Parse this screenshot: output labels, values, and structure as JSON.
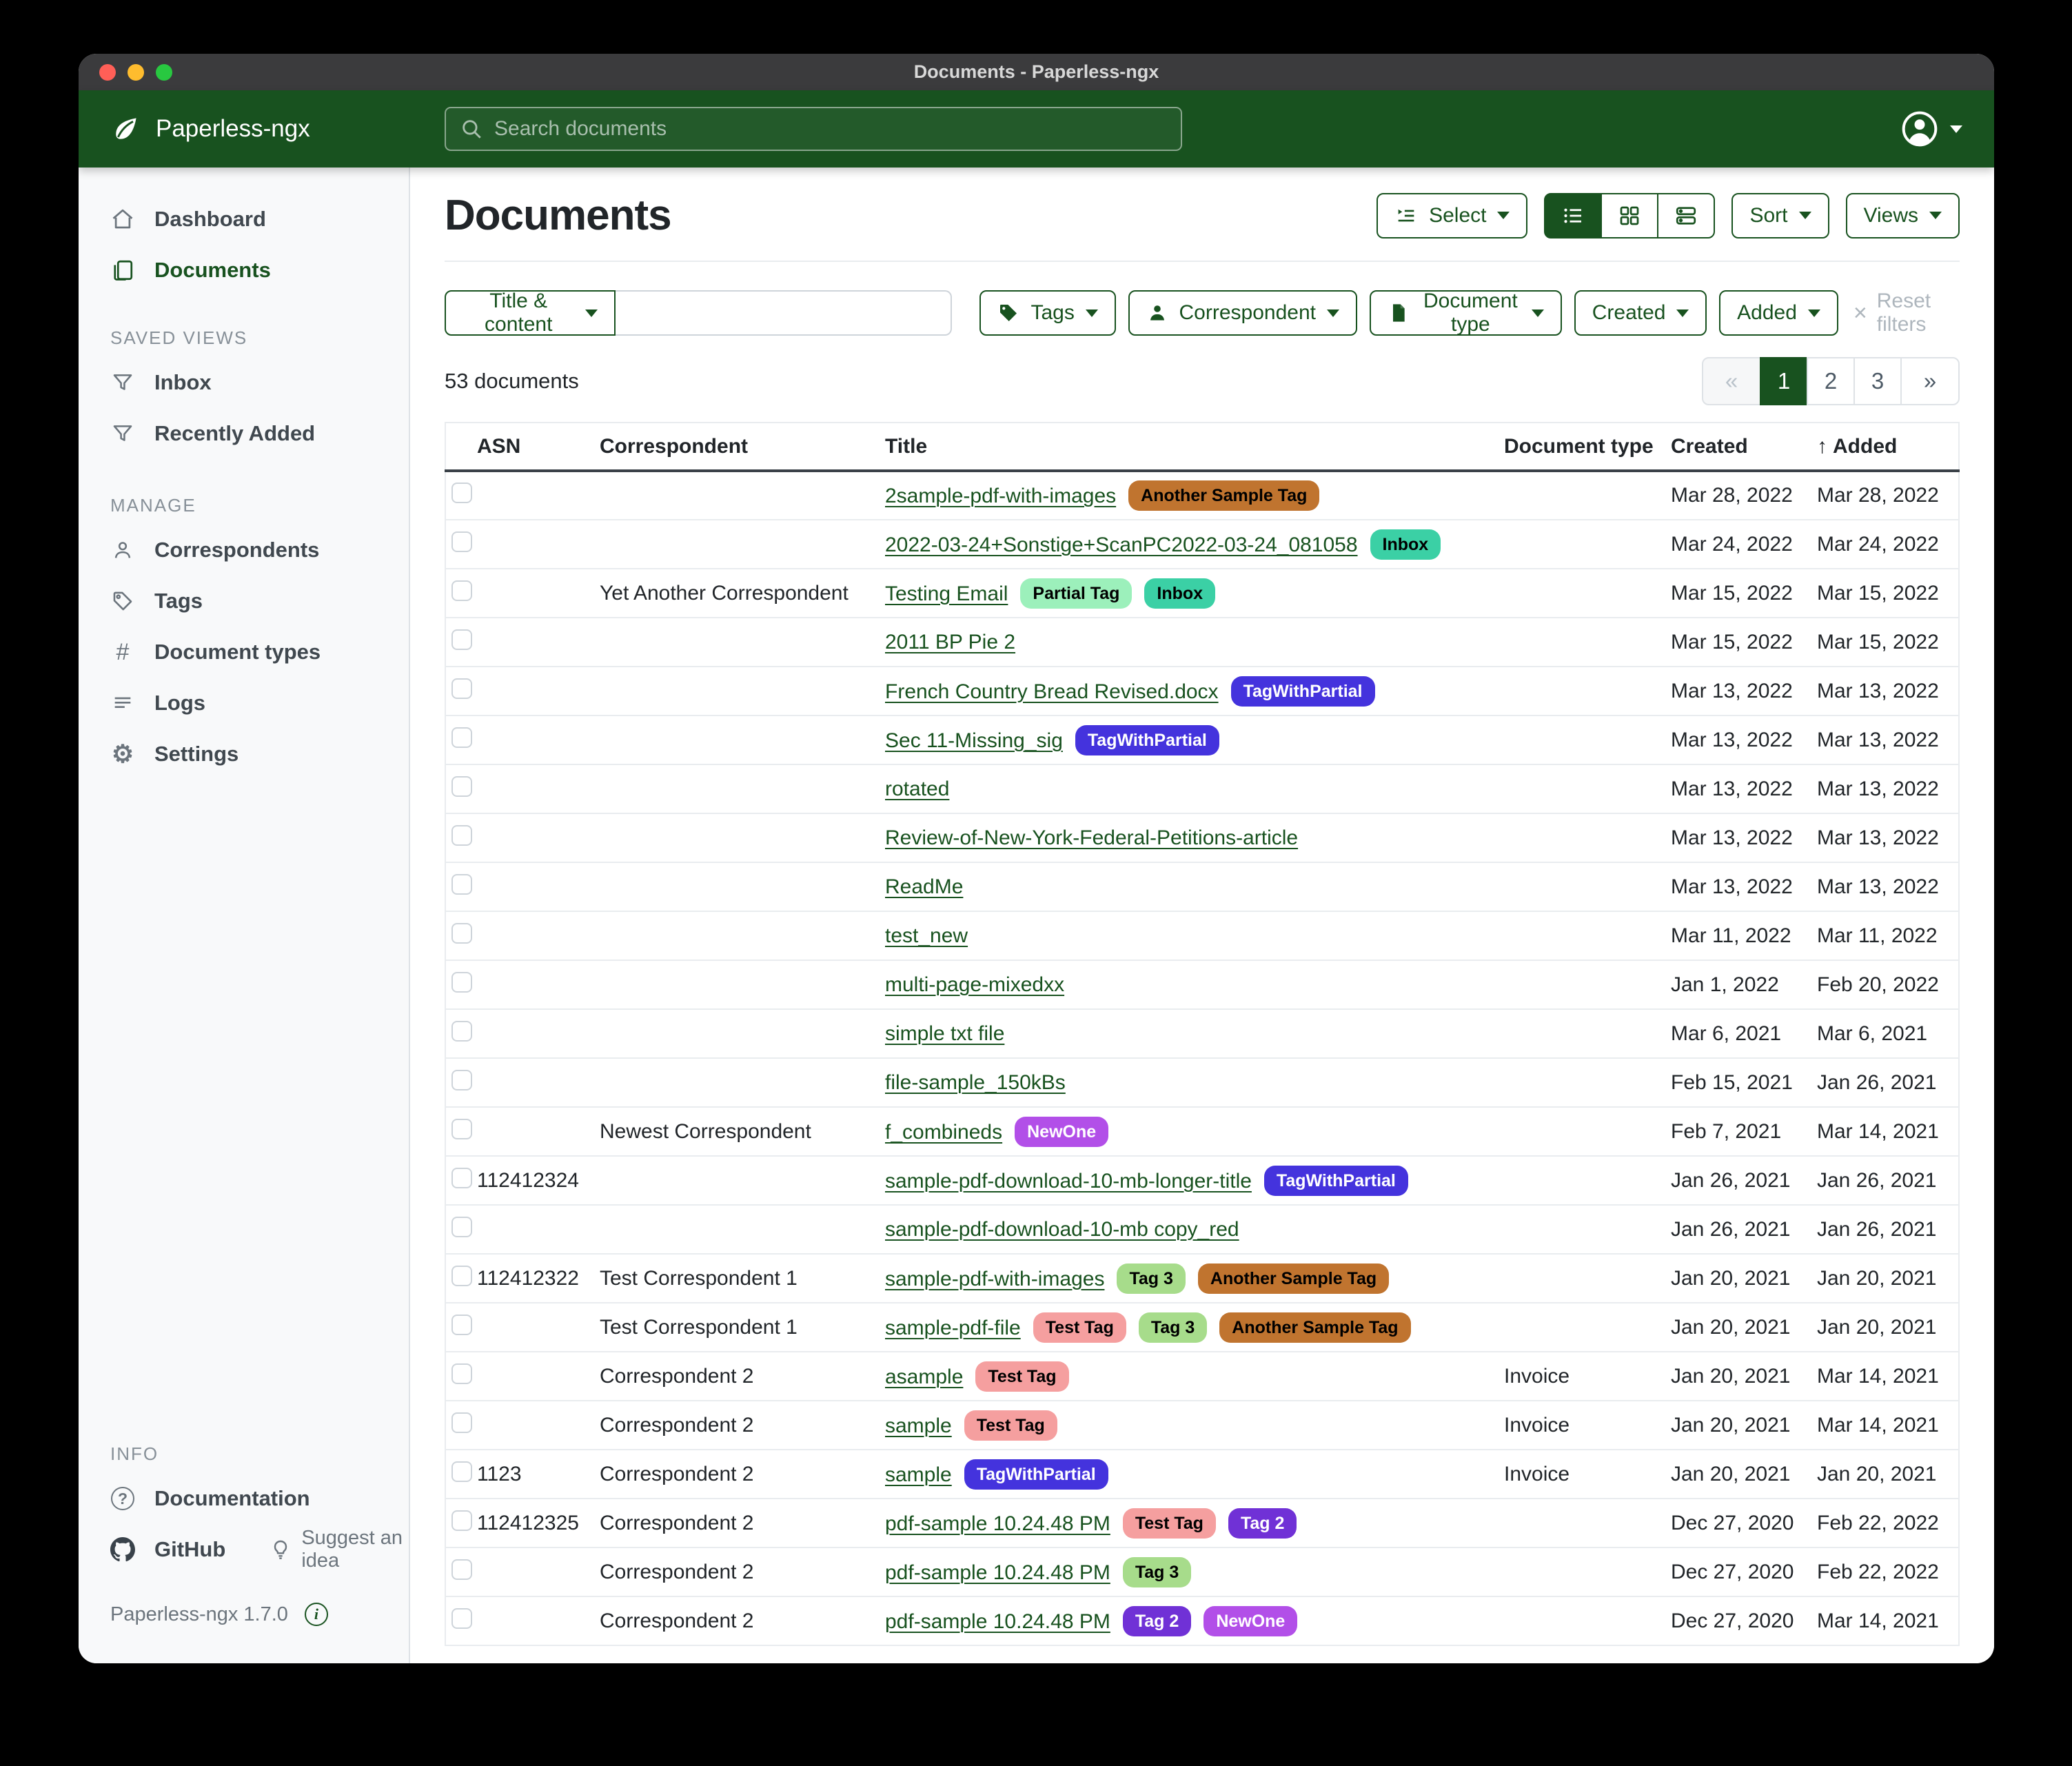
{
  "window": {
    "title": "Documents - Paperless-ngx"
  },
  "header": {
    "app_name": "Paperless-ngx",
    "search_placeholder": "Search documents"
  },
  "sidebar": {
    "nav": [
      {
        "label": "Dashboard"
      },
      {
        "label": "Documents"
      }
    ],
    "saved_views_heading": "SAVED VIEWS",
    "saved_views": [
      "Inbox",
      "Recently Added"
    ],
    "manage_heading": "MANAGE",
    "manage": [
      "Correspondents",
      "Tags",
      "Document types",
      "Logs",
      "Settings"
    ],
    "info_heading": "INFO",
    "info": {
      "documentation": "Documentation",
      "github": "GitHub",
      "suggest": "Suggest an idea",
      "version": "Paperless-ngx 1.7.0"
    }
  },
  "main": {
    "title": "Documents",
    "count_text": "53 documents"
  },
  "toolbar": {
    "select": "Select",
    "sort": "Sort",
    "views": "Views"
  },
  "filters": {
    "field": "Title & content",
    "query": "",
    "tags": "Tags",
    "correspondent": "Correspondent",
    "document_type": "Document type",
    "created": "Created",
    "added": "Added",
    "reset": "Reset filters"
  },
  "pagination": {
    "prev": "«",
    "pages": [
      "1",
      "2",
      "3"
    ],
    "active_page": "1",
    "next": "»"
  },
  "table": {
    "columns": [
      "ASN",
      "Correspondent",
      "Title",
      "Document type",
      "Created",
      "Added"
    ],
    "sort_column": "Added",
    "sort_direction": "ascending",
    "rows": [
      {
        "asn": "",
        "correspondent": "",
        "title": "2sample-pdf-with-images",
        "tags": [
          "Another Sample Tag"
        ],
        "document_type": "",
        "created": "Mar 28, 2022",
        "added": "Mar 28, 2022"
      },
      {
        "asn": "",
        "correspondent": "",
        "title": "2022-03-24+Sonstige+ScanPC2022-03-24_081058",
        "tags": [
          "Inbox"
        ],
        "document_type": "",
        "created": "Mar 24, 2022",
        "added": "Mar 24, 2022"
      },
      {
        "asn": "",
        "correspondent": "Yet Another Correspondent",
        "title": "Testing Email",
        "tags": [
          "Partial Tag",
          "Inbox"
        ],
        "document_type": "",
        "created": "Mar 15, 2022",
        "added": "Mar 15, 2022"
      },
      {
        "asn": "",
        "correspondent": "",
        "title": "2011 BP Pie 2",
        "tags": [],
        "document_type": "",
        "created": "Mar 15, 2022",
        "added": "Mar 15, 2022"
      },
      {
        "asn": "",
        "correspondent": "",
        "title": "French Country Bread Revised.docx",
        "tags": [
          "TagWithPartial"
        ],
        "document_type": "",
        "created": "Mar 13, 2022",
        "added": "Mar 13, 2022"
      },
      {
        "asn": "",
        "correspondent": "",
        "title": "Sec 11-Missing_sig",
        "tags": [
          "TagWithPartial"
        ],
        "document_type": "",
        "created": "Mar 13, 2022",
        "added": "Mar 13, 2022"
      },
      {
        "asn": "",
        "correspondent": "",
        "title": "rotated",
        "tags": [],
        "document_type": "",
        "created": "Mar 13, 2022",
        "added": "Mar 13, 2022"
      },
      {
        "asn": "",
        "correspondent": "",
        "title": "Review-of-New-York-Federal-Petitions-article",
        "tags": [],
        "document_type": "",
        "created": "Mar 13, 2022",
        "added": "Mar 13, 2022"
      },
      {
        "asn": "",
        "correspondent": "",
        "title": "ReadMe",
        "tags": [],
        "document_type": "",
        "created": "Mar 13, 2022",
        "added": "Mar 13, 2022"
      },
      {
        "asn": "",
        "correspondent": "",
        "title": "test_new",
        "tags": [],
        "document_type": "",
        "created": "Mar 11, 2022",
        "added": "Mar 11, 2022"
      },
      {
        "asn": "",
        "correspondent": "",
        "title": "multi-page-mixedxx",
        "tags": [],
        "document_type": "",
        "created": "Jan 1, 2022",
        "added": "Feb 20, 2022"
      },
      {
        "asn": "",
        "correspondent": "",
        "title": "simple txt file",
        "tags": [],
        "document_type": "",
        "created": "Mar 6, 2021",
        "added": "Mar 6, 2021"
      },
      {
        "asn": "",
        "correspondent": "",
        "title": "file-sample_150kBs",
        "tags": [],
        "document_type": "",
        "created": "Feb 15, 2021",
        "added": "Jan 26, 2021"
      },
      {
        "asn": "",
        "correspondent": "Newest Correspondent",
        "title": "f_combineds",
        "tags": [
          "NewOne"
        ],
        "document_type": "",
        "created": "Feb 7, 2021",
        "added": "Mar 14, 2021"
      },
      {
        "asn": "112412324",
        "correspondent": "",
        "title": "sample-pdf-download-10-mb-longer-title",
        "tags": [
          "TagWithPartial"
        ],
        "document_type": "",
        "created": "Jan 26, 2021",
        "added": "Jan 26, 2021"
      },
      {
        "asn": "",
        "correspondent": "",
        "title": "sample-pdf-download-10-mb copy_red",
        "tags": [],
        "document_type": "",
        "created": "Jan 26, 2021",
        "added": "Jan 26, 2021"
      },
      {
        "asn": "112412322",
        "correspondent": "Test Correspondent 1",
        "title": "sample-pdf-with-images",
        "tags": [
          "Tag 3",
          "Another Sample Tag"
        ],
        "document_type": "",
        "created": "Jan 20, 2021",
        "added": "Jan 20, 2021"
      },
      {
        "asn": "",
        "correspondent": "Test Correspondent 1",
        "title": "sample-pdf-file",
        "tags": [
          "Test Tag",
          "Tag 3",
          "Another Sample Tag"
        ],
        "document_type": "",
        "created": "Jan 20, 2021",
        "added": "Jan 20, 2021"
      },
      {
        "asn": "",
        "correspondent": "Correspondent 2",
        "title": "asample",
        "tags": [
          "Test Tag"
        ],
        "document_type": "Invoice",
        "created": "Jan 20, 2021",
        "added": "Mar 14, 2021"
      },
      {
        "asn": "",
        "correspondent": "Correspondent 2",
        "title": "sample",
        "tags": [
          "Test Tag"
        ],
        "document_type": "Invoice",
        "created": "Jan 20, 2021",
        "added": "Mar 14, 2021"
      },
      {
        "asn": "1123",
        "correspondent": "Correspondent 2",
        "title": "sample",
        "tags": [
          "TagWithPartial"
        ],
        "document_type": "Invoice",
        "created": "Jan 20, 2021",
        "added": "Jan 20, 2021"
      },
      {
        "asn": "112412325",
        "correspondent": "Correspondent 2",
        "title": "pdf-sample 10.24.48 PM",
        "tags": [
          "Test Tag",
          "Tag 2"
        ],
        "document_type": "",
        "created": "Dec 27, 2020",
        "added": "Feb 22, 2022"
      },
      {
        "asn": "",
        "correspondent": "Correspondent 2",
        "title": "pdf-sample 10.24.48 PM",
        "tags": [
          "Tag 3"
        ],
        "document_type": "",
        "created": "Dec 27, 2020",
        "added": "Feb 22, 2022"
      },
      {
        "asn": "",
        "correspondent": "Correspondent 2",
        "title": "pdf-sample 10.24.48 PM",
        "tags": [
          "Tag 2",
          "NewOne"
        ],
        "document_type": "",
        "created": "Dec 27, 2020",
        "added": "Mar 14, 2021"
      }
    ]
  },
  "tag_colors": {
    "Another Sample Tag": {
      "bg": "#c0742f",
      "fg": "#000000"
    },
    "Inbox": {
      "bg": "#3bd0a5",
      "fg": "#000000"
    },
    "Partial Tag": {
      "bg": "#9cf0bb",
      "fg": "#000000"
    },
    "TagWithPartial": {
      "bg": "#4433dd",
      "fg": "#ffffff"
    },
    "NewOne": {
      "bg": "#b24fe8",
      "fg": "#ffffff"
    },
    "Tag 3": {
      "bg": "#a7dc8b",
      "fg": "#000000"
    },
    "Test Tag": {
      "bg": "#f59f9f",
      "fg": "#000000"
    },
    "Tag 2": {
      "bg": "#7031d6",
      "fg": "#ffffff"
    }
  },
  "colors": {
    "brand_green": "#18521f",
    "titlebar": "#3b3b3d",
    "sidebar_bg": "#f8f9fa"
  }
}
